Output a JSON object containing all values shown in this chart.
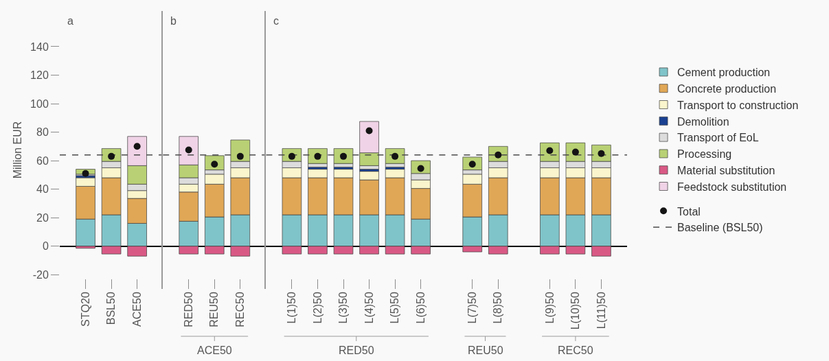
{
  "chart_data": [
    {
      "type": "bar",
      "title": "a",
      "ylabel": "Million EUR",
      "stacked": true,
      "categories": [
        "STQ20",
        "BSL50",
        "ACE50"
      ],
      "series": [
        {
          "color": "#7fc4c9",
          "values": [
            19,
            22,
            16
          ]
        },
        {
          "color": "#e0a756",
          "values": [
            23,
            26,
            17.5
          ]
        },
        {
          "color": "#faf5cc",
          "values": [
            6,
            7,
            5.5
          ]
        },
        {
          "color": "#1a4191",
          "values": [
            1.5,
            null,
            null
          ]
        },
        {
          "color": "#dcdcdc",
          "values": [
            1,
            4.5,
            4.5
          ]
        },
        {
          "color": "#b9d174",
          "values": [
            3.5,
            9,
            13
          ]
        },
        {
          "color": "#d95985",
          "values": [
            -1.5,
            -5.5,
            -7
          ]
        },
        {
          "color": "#f0d3e6",
          "values": [
            null,
            null,
            20.5
          ]
        },
        {
          "type": "scatter",
          "color": "#141414",
          "values": [
            51,
            63,
            70
          ]
        }
      ],
      "marker": "circle",
      "ylim": [
        -30,
        165
      ],
      "yticks": [
        -20,
        0,
        20,
        40,
        60,
        80,
        100,
        120,
        140
      ],
      "ref_lines": [
        {
          "axis": "y",
          "value": 64,
          "line_style": "dashed",
          "color": "#4a4a4a"
        }
      ]
    },
    {
      "type": "bar",
      "title": "b",
      "stacked": true,
      "tick_labels": "x",
      "categories": [
        "RED50",
        "REU50",
        "REC50"
      ],
      "series": [
        {
          "color": "#7fc4c9",
          "values": [
            17.5,
            20.5,
            22
          ]
        },
        {
          "color": "#e0a756",
          "values": [
            20.5,
            23,
            26
          ]
        },
        {
          "color": "#faf5cc",
          "values": [
            5.5,
            7,
            7
          ]
        },
        {
          "color": "#1a4191",
          "values": [
            null,
            null,
            null
          ]
        },
        {
          "color": "#dcdcdc",
          "values": [
            4.5,
            3,
            4.5
          ]
        },
        {
          "color": "#b9d174",
          "values": [
            9,
            10,
            15
          ]
        },
        {
          "color": "#d95985",
          "values": [
            -5.5,
            -5.5,
            -7
          ]
        },
        {
          "color": "#f0d3e6",
          "values": [
            20,
            null,
            null
          ]
        },
        {
          "type": "scatter",
          "color": "#141414",
          "values": [
            67.5,
            57.5,
            63
          ]
        }
      ],
      "marker": "circle",
      "ylim": [
        -30,
        165
      ],
      "ref_lines": [
        {
          "axis": "y",
          "value": 64,
          "line_style": "dashed",
          "color": "#4a4a4a"
        }
      ],
      "annotations": [
        "ACE50"
      ]
    },
    {
      "type": "bar",
      "title": "c",
      "stacked": true,
      "tick_labels": "x",
      "legend": "right",
      "categories": [
        "L(1)50",
        "L(2)50",
        "L(3)50",
        "L(4)50",
        "L(5)50",
        "L(6)50",
        null,
        "L(7)50",
        "L(8)50",
        null,
        "L(9)50",
        "L(10)50",
        "L(11)50"
      ],
      "series": [
        {
          "name": "Cement production",
          "color": "#7fc4c9",
          "values": [
            22,
            22,
            22,
            22,
            22,
            19,
            null,
            20.5,
            22,
            null,
            22,
            22,
            22
          ]
        },
        {
          "name": "Concrete production",
          "color": "#e0a756",
          "values": [
            26,
            26,
            26,
            24.5,
            26,
            21.5,
            null,
            23,
            26,
            null,
            26,
            26,
            26
          ]
        },
        {
          "name": "Transport to construction",
          "color": "#faf5cc",
          "values": [
            7,
            6,
            6,
            6,
            6,
            6,
            null,
            7,
            7,
            null,
            7,
            7,
            7
          ]
        },
        {
          "name": "Demolition",
          "color": "#1a4191",
          "values": [
            null,
            1.5,
            1.5,
            1.5,
            1.5,
            null,
            null,
            null,
            null,
            null,
            null,
            null,
            null
          ]
        },
        {
          "name": "Transport of EoL",
          "color": "#dcdcdc",
          "values": [
            4.5,
            2.5,
            2.5,
            2.5,
            2.5,
            4.5,
            null,
            3,
            4.5,
            null,
            4.5,
            4.5,
            4.5
          ]
        },
        {
          "name": "Processing",
          "color": "#b9d174",
          "values": [
            9,
            10.5,
            10.5,
            9,
            10.5,
            9,
            null,
            9,
            10.5,
            null,
            13,
            13,
            11.5
          ]
        },
        {
          "name": "Material substitution",
          "color": "#d95985",
          "values": [
            -5.5,
            -5.5,
            -5.5,
            -5.5,
            -5.5,
            -5.5,
            null,
            -4,
            -5.5,
            null,
            -5.5,
            -5.5,
            -7
          ]
        },
        {
          "name": "Feedstock substitution",
          "color": "#f0d3e6",
          "values": [
            null,
            null,
            null,
            22,
            null,
            null,
            null,
            null,
            null,
            null,
            null,
            null,
            null
          ]
        },
        {
          "name": "Total",
          "type": "scatter",
          "color": "#141414",
          "values": [
            63,
            63,
            63,
            81,
            63,
            54.5,
            null,
            57.5,
            64,
            null,
            67,
            66,
            65
          ]
        }
      ],
      "marker": "circle",
      "ylim": [
        -30,
        165
      ],
      "ref_lines": [
        {
          "axis": "y",
          "value": 64,
          "label": "Baseline (BSL50)",
          "line_style": "dashed",
          "color": "#4a4a4a"
        }
      ],
      "annotations": [
        "RED50",
        "REU50",
        "REC50"
      ]
    }
  ]
}
